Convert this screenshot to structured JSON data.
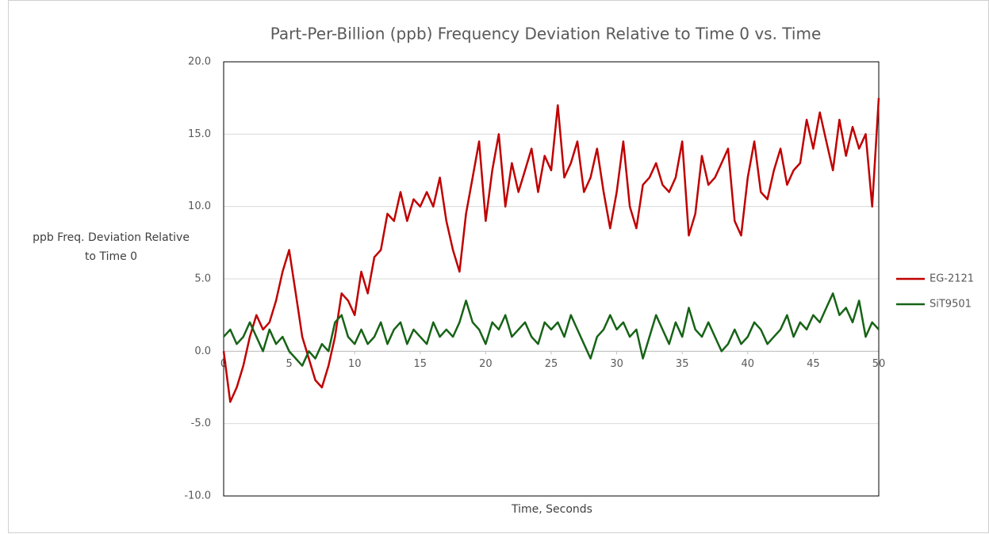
{
  "chart_data": {
    "type": "line",
    "title": "Part-Per-Billion (ppb) Frequency Deviation Relative to Time 0 vs. Time",
    "xlabel": "Time, Seconds",
    "ylabel": [
      "ppb Freq. Deviation Relative",
      "to Time 0"
    ],
    "x": [
      0,
      0.5,
      1,
      1.5,
      2,
      2.5,
      3,
      3.5,
      4,
      4.5,
      5,
      5.5,
      6,
      6.5,
      7,
      7.5,
      8,
      8.5,
      9,
      9.5,
      10,
      10.5,
      11,
      11.5,
      12,
      12.5,
      13,
      13.5,
      14,
      14.5,
      15,
      15.5,
      16,
      16.5,
      17,
      17.5,
      18,
      18.5,
      19,
      19.5,
      20,
      20.5,
      21,
      21.5,
      22,
      22.5,
      23,
      23.5,
      24,
      24.5,
      25,
      25.5,
      26,
      26.5,
      27,
      27.5,
      28,
      28.5,
      29,
      29.5,
      30,
      30.5,
      31,
      31.5,
      32,
      32.5,
      33,
      33.5,
      34,
      34.5,
      35,
      35.5,
      36,
      36.5,
      37,
      37.5,
      38,
      38.5,
      39,
      39.5,
      40,
      40.5,
      41,
      41.5,
      42,
      42.5,
      43,
      43.5,
      44,
      44.5,
      45,
      45.5,
      46,
      46.5,
      47,
      47.5,
      48,
      48.5,
      49,
      49.5,
      50
    ],
    "series": [
      {
        "name": "EG-2121",
        "color": "#c00000",
        "values": [
          0,
          -3.5,
          -2.5,
          -1,
          1,
          2.5,
          1.5,
          2,
          3.5,
          5.5,
          7,
          4,
          1,
          -0.5,
          -2,
          -2.5,
          -1,
          1,
          4,
          3.5,
          2.5,
          5.5,
          4,
          6.5,
          7,
          9.5,
          9,
          11,
          9,
          10.5,
          10,
          11,
          10,
          12,
          9,
          7,
          5.5,
          9.5,
          12,
          14.5,
          9,
          12.5,
          15,
          10,
          13,
          11,
          12.5,
          14,
          11,
          13.5,
          12.5,
          17,
          12,
          13,
          14.5,
          11,
          12,
          14,
          11,
          8.5,
          11,
          14.5,
          10,
          8.5,
          11.5,
          12,
          13,
          11.5,
          11,
          12,
          14.5,
          8,
          9.5,
          13.5,
          11.5,
          12,
          13,
          14,
          9,
          8,
          12,
          14.5,
          11,
          10.5,
          12.5,
          14,
          11.5,
          12.5,
          13,
          16,
          14,
          16.5,
          14.5,
          12.5,
          16,
          13.5,
          15.5,
          14,
          15,
          10,
          17.5
        ]
      },
      {
        "name": "SiT9501",
        "color": "#176317",
        "values": [
          1,
          1.5,
          0.5,
          1,
          2,
          1,
          0,
          1.5,
          0.5,
          1,
          0,
          -0.5,
          -1,
          0,
          -0.5,
          0.5,
          0,
          2,
          2.5,
          1,
          0.5,
          1.5,
          0.5,
          1,
          2,
          0.5,
          1.5,
          2,
          0.5,
          1.5,
          1,
          0.5,
          2,
          1,
          1.5,
          1,
          2,
          3.5,
          2,
          1.5,
          0.5,
          2,
          1.5,
          2.5,
          1,
          1.5,
          2,
          1,
          0.5,
          2,
          1.5,
          2,
          1,
          2.5,
          1.5,
          0.5,
          -0.5,
          1,
          1.5,
          2.5,
          1.5,
          2,
          1,
          1.5,
          -0.5,
          1,
          2.5,
          1.5,
          0.5,
          2,
          1,
          3,
          1.5,
          1,
          2,
          1,
          0,
          0.5,
          1.5,
          0.5,
          1,
          2,
          1.5,
          0.5,
          1,
          1.5,
          2.5,
          1,
          2,
          1.5,
          2.5,
          2,
          3,
          4,
          2.5,
          3,
          2,
          3.5,
          1,
          2,
          1.5
        ]
      }
    ],
    "xlim": [
      0,
      50
    ],
    "xticks": [
      0,
      5,
      10,
      15,
      20,
      25,
      30,
      35,
      40,
      45,
      50
    ],
    "ylim": [
      -10,
      20
    ],
    "yticks": [
      {
        "value": -10,
        "label": "-10.0"
      },
      {
        "value": -5,
        "label": "-5.0"
      },
      {
        "value": 0,
        "label": "0.0"
      },
      {
        "value": 5,
        "label": "5.0"
      },
      {
        "value": 10,
        "label": "10.0"
      },
      {
        "value": 15,
        "label": "15.0"
      },
      {
        "value": 20,
        "label": "20.0"
      }
    ],
    "grid": true,
    "legend": "right"
  }
}
